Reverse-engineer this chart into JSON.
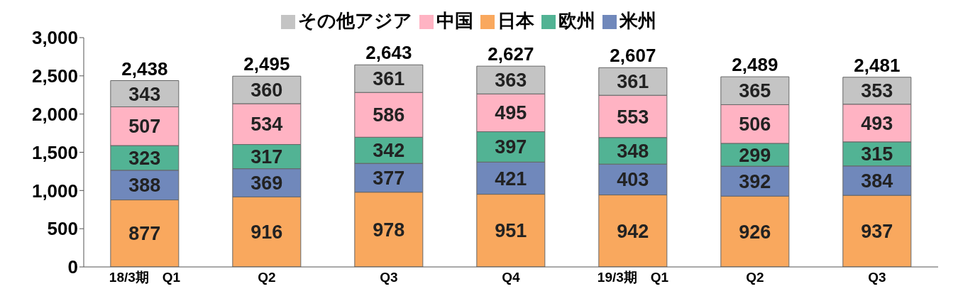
{
  "chart_data": {
    "type": "bar",
    "stacked": true,
    "categories": [
      "18/3期　Q1",
      "Q2",
      "Q3",
      "Q4",
      "19/3期　Q1",
      "Q2",
      "Q3"
    ],
    "series": [
      {
        "name": "日本",
        "color": "#f9a85e",
        "values": [
          877,
          916,
          978,
          951,
          942,
          926,
          937
        ]
      },
      {
        "name": "米州",
        "color": "#7088bb",
        "values": [
          388,
          369,
          377,
          421,
          403,
          392,
          384
        ]
      },
      {
        "name": "欧州",
        "color": "#52b394",
        "values": [
          323,
          317,
          342,
          397,
          348,
          299,
          315
        ]
      },
      {
        "name": "中国",
        "color": "#ffb3c3",
        "values": [
          507,
          534,
          586,
          495,
          553,
          506,
          493
        ]
      },
      {
        "name": "その他アジア",
        "color": "#c4c4c4",
        "values": [
          343,
          360,
          361,
          363,
          361,
          365,
          353
        ]
      }
    ],
    "totals": [
      "2,438",
      "2,495",
      "2,643",
      "2,627",
      "2,607",
      "2,489",
      "2,481"
    ],
    "ylim": [
      0,
      3000
    ],
    "yticks": [
      0,
      {
        "value": 500,
        "label": "500"
      },
      {
        "value": 1000,
        "label": "1,000"
      },
      {
        "value": 1500,
        "label": "1,500"
      },
      {
        "value": 2000,
        "label": "2,000"
      },
      {
        "value": 2500,
        "label": "2,500"
      },
      {
        "value": 3000,
        "label": "3,000"
      }
    ],
    "data_labels": true,
    "grid": false,
    "legend": "top"
  }
}
